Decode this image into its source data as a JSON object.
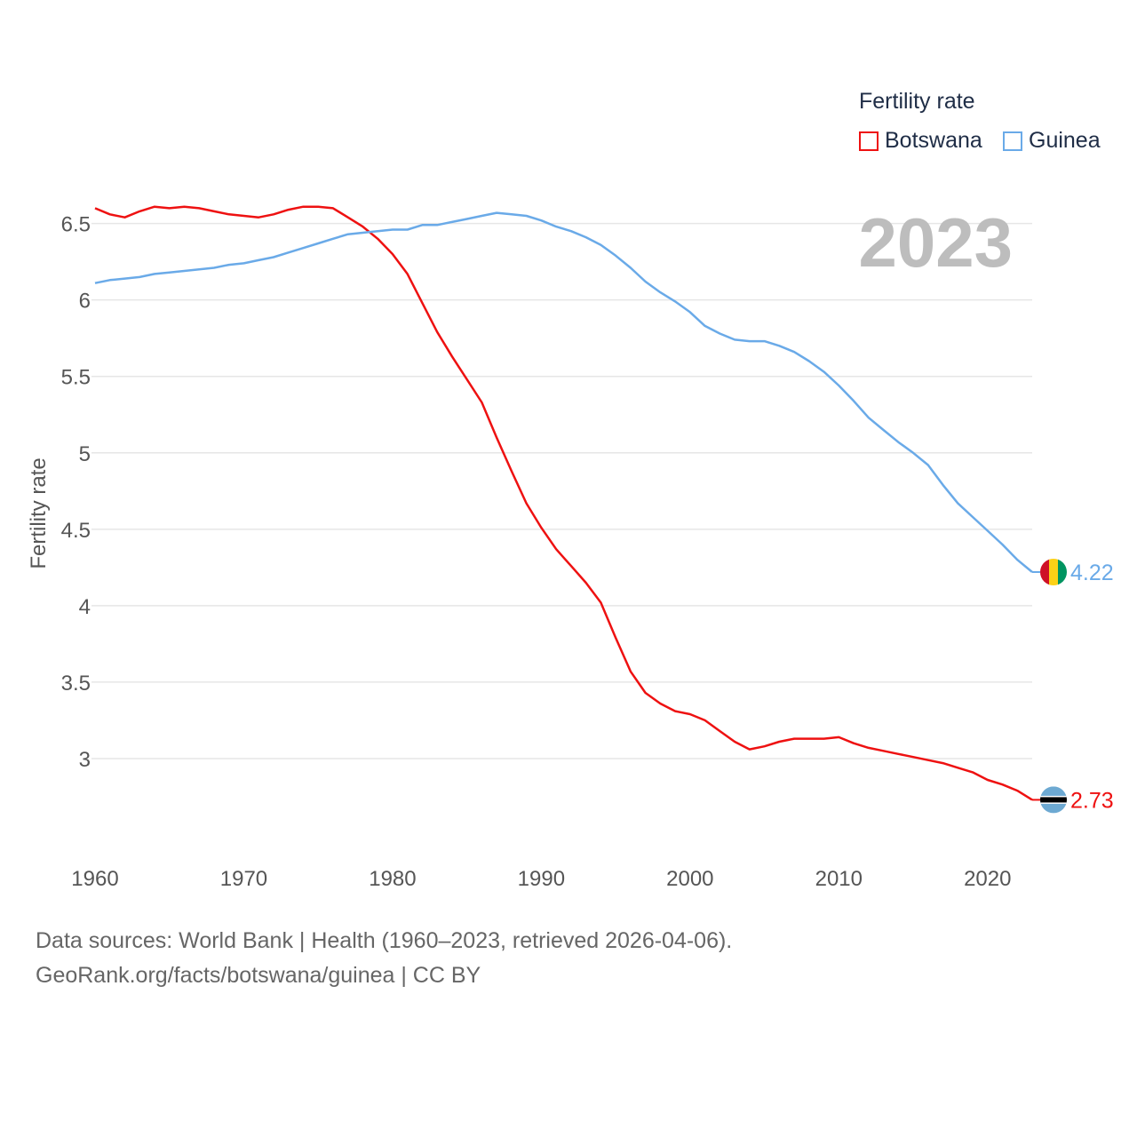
{
  "legend": {
    "title": "Fertility rate",
    "items": [
      {
        "label": "Botswana",
        "color": "#ee1111"
      },
      {
        "label": "Guinea",
        "color": "#6aaae8"
      }
    ]
  },
  "footer": {
    "line1": "Data sources: World Bank | Health (1960–2023, retrieved 2026-04-06).",
    "line2": "GeoRank.org/facts/botswana/guinea | CC BY"
  },
  "chart_data": {
    "type": "line",
    "title": "Fertility rate",
    "year_label": "2023",
    "xlabel": "",
    "ylabel": "Fertility rate",
    "xlim": [
      1960,
      2023
    ],
    "ylim": [
      2.5,
      6.8
    ],
    "x_ticks": [
      "1960",
      "1970",
      "1980",
      "1990",
      "2000",
      "2010",
      "2020"
    ],
    "y_ticks": [
      "3",
      "3.5",
      "4",
      "4.5",
      "5",
      "5.5",
      "6",
      "6.5"
    ],
    "grid": true,
    "x": [
      1960,
      1961,
      1962,
      1963,
      1964,
      1965,
      1966,
      1967,
      1968,
      1969,
      1970,
      1971,
      1972,
      1973,
      1974,
      1975,
      1976,
      1977,
      1978,
      1979,
      1980,
      1981,
      1982,
      1983,
      1984,
      1985,
      1986,
      1987,
      1988,
      1989,
      1990,
      1991,
      1992,
      1993,
      1994,
      1995,
      1996,
      1997,
      1998,
      1999,
      2000,
      2001,
      2002,
      2003,
      2004,
      2005,
      2006,
      2007,
      2008,
      2009,
      2010,
      2011,
      2012,
      2013,
      2014,
      2015,
      2016,
      2017,
      2018,
      2019,
      2020,
      2021,
      2022,
      2023
    ],
    "series": [
      {
        "name": "Botswana",
        "color": "#ee1111",
        "end_label": "2.73",
        "flag": "botswana-flag-icon",
        "values": [
          6.6,
          6.56,
          6.54,
          6.58,
          6.61,
          6.6,
          6.61,
          6.6,
          6.58,
          6.56,
          6.55,
          6.54,
          6.56,
          6.59,
          6.61,
          6.61,
          6.6,
          6.54,
          6.48,
          6.4,
          6.3,
          6.17,
          5.98,
          5.79,
          5.63,
          5.48,
          5.33,
          5.1,
          4.88,
          4.67,
          4.51,
          4.37,
          4.26,
          4.15,
          4.02,
          3.79,
          3.57,
          3.43,
          3.36,
          3.31,
          3.29,
          3.25,
          3.18,
          3.11,
          3.06,
          3.08,
          3.11,
          3.13,
          3.13,
          3.13,
          3.14,
          3.1,
          3.07,
          3.05,
          3.03,
          3.01,
          2.99,
          2.97,
          2.94,
          2.91,
          2.86,
          2.83,
          2.79,
          2.73
        ]
      },
      {
        "name": "Guinea",
        "color": "#6aaae8",
        "end_label": "4.22",
        "flag": "guinea-flag-icon",
        "values": [
          6.11,
          6.13,
          6.14,
          6.15,
          6.17,
          6.18,
          6.19,
          6.2,
          6.21,
          6.23,
          6.24,
          6.26,
          6.28,
          6.31,
          6.34,
          6.37,
          6.4,
          6.43,
          6.44,
          6.45,
          6.46,
          6.46,
          6.49,
          6.49,
          6.51,
          6.53,
          6.55,
          6.57,
          6.56,
          6.55,
          6.52,
          6.48,
          6.45,
          6.41,
          6.36,
          6.29,
          6.21,
          6.12,
          6.05,
          5.99,
          5.92,
          5.83,
          5.78,
          5.74,
          5.73,
          5.73,
          5.7,
          5.66,
          5.6,
          5.53,
          5.44,
          5.34,
          5.23,
          5.15,
          5.07,
          5.0,
          4.92,
          4.79,
          4.67,
          4.58,
          4.49,
          4.4,
          4.3,
          4.22
        ]
      }
    ]
  }
}
